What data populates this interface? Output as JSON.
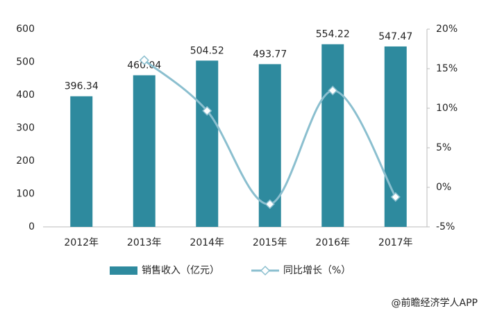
{
  "chart_data": {
    "type": "bar-line",
    "categories": [
      "2012年",
      "2013年",
      "2014年",
      "2015年",
      "2016年",
      "2017年"
    ],
    "series": [
      {
        "name": "销售收入（亿元）",
        "type": "bar",
        "color": "#2e8a9e",
        "values": [
          396.34,
          460.04,
          504.52,
          493.77,
          554.22,
          547.47
        ]
      },
      {
        "name": "同比增长（%）",
        "type": "line",
        "axis": "y2",
        "color": "#8bbfcf",
        "values": [
          null,
          16.07,
          9.67,
          -2.13,
          12.24,
          -1.22
        ]
      }
    ],
    "ylim": [
      0,
      600
    ],
    "yticks": [
      0,
      100,
      200,
      300,
      400,
      500,
      600
    ],
    "y2lim": [
      -5,
      20
    ],
    "y2ticks": [
      {
        "value": -5,
        "label": "-5%"
      },
      {
        "value": 0,
        "label": "0%"
      },
      {
        "value": 5,
        "label": "5%"
      },
      {
        "value": 10,
        "label": "10%"
      },
      {
        "value": 15,
        "label": "15%"
      },
      {
        "value": 20,
        "label": "20%"
      }
    ],
    "grid": false,
    "source": "@前瞻经济学人APP"
  }
}
